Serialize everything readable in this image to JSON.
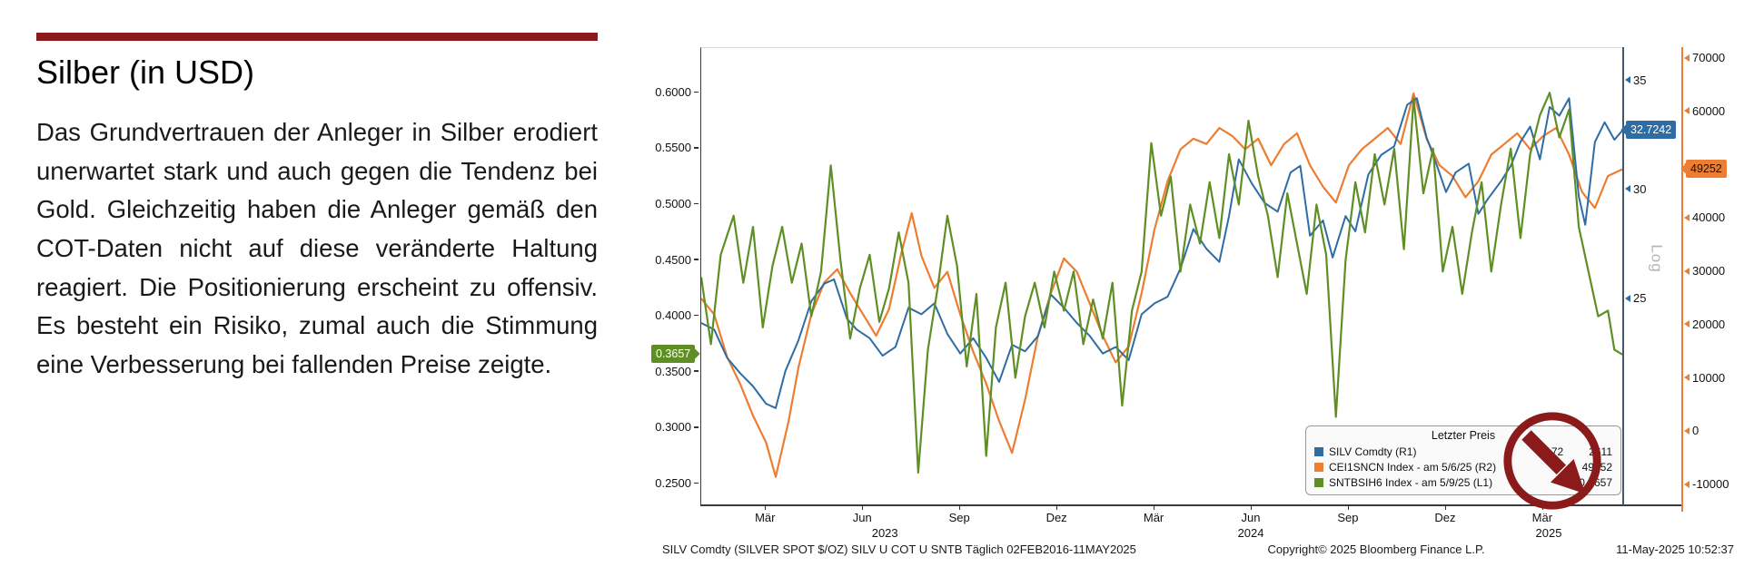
{
  "slide": {
    "title": "Silber (in USD)",
    "accent_color": "#8B1A1A",
    "body": "Das Grundvertrauen der Anleger in Silber erodiert unerwartet stark und auch gegen die Tendenz bei Gold. Gleichzeitig haben die Anleger gemäß den COT-Daten nicht auf diese veränderte Haltung reagiert. Die Positionierung erscheint zu offensiv. Es besteht ein Risiko, zumal auch die Stimmung eine Verbesserung bei fallenden Preise zeigte."
  },
  "chart": {
    "log_label": "Log",
    "annotation_color": "#8B1A1A",
    "legend": {
      "title": "Letzter Preis",
      "rows": [
        {
          "color": "#2E6DA4",
          "label": "SILV Comdty  (R1)",
          "value": "32.72",
          "value2": "2611"
        },
        {
          "color": "#ED7D31",
          "label": "CEI1SNCN Index -  am 5/6/25  (R2)",
          "value": "49252"
        },
        {
          "color": "#5F8F24",
          "label": "SNTBSIH6 Index -  am 5/9/25  (L1)",
          "value": "0.3657"
        }
      ]
    },
    "footer": {
      "left": "SILV Comdty (SILVER SPOT $/OZ) SILV U COT U SNTB  Täglich 02FEB2016-11MAY2025",
      "copyright": "Copyright© 2025 Bloomberg Finance L.P.",
      "datetime": "11-May-2025 10:52:37"
    }
  },
  "chart_data": {
    "type": "line",
    "title": "",
    "grid": false,
    "scale_note": "Log",
    "x_axis": {
      "max": 28.5,
      "start": "Feb 2023",
      "end": "May 2025",
      "ticks": [
        {
          "m": 2,
          "label": "Mär"
        },
        {
          "m": 5,
          "label": "Jun"
        },
        {
          "m": 8,
          "label": "Sep"
        },
        {
          "m": 11,
          "label": "Dez"
        },
        {
          "m": 14,
          "label": "Mär"
        },
        {
          "m": 17,
          "label": "Jun"
        },
        {
          "m": 20,
          "label": "Sep"
        },
        {
          "m": 23,
          "label": "Dez"
        },
        {
          "m": 26,
          "label": "Mär"
        }
      ],
      "years": [
        {
          "m": 5.7,
          "label": "2023"
        },
        {
          "m": 17,
          "label": "2024"
        },
        {
          "m": 26.2,
          "label": "2025"
        }
      ]
    },
    "axes": {
      "L1": {
        "min": 0.23,
        "max": 0.64,
        "color": "#5F8F24",
        "ticks": [
          {
            "v": 0.6,
            "label": "0.6000"
          },
          {
            "v": 0.55,
            "label": "0.5500"
          },
          {
            "v": 0.5,
            "label": "0.5000"
          },
          {
            "v": 0.45,
            "label": "0.4500"
          },
          {
            "v": 0.4,
            "label": "0.4000"
          },
          {
            "v": 0.35,
            "label": "0.3500"
          },
          {
            "v": 0.3,
            "label": "0.3000"
          },
          {
            "v": 0.25,
            "label": "0.2500"
          }
        ]
      },
      "R1": {
        "min": 15.5,
        "max": 36.5,
        "color": "#2E6DA4",
        "ticks": [
          {
            "v": 35,
            "label": "35"
          },
          {
            "v": 30,
            "label": "30"
          },
          {
            "v": 25,
            "label": "25"
          }
        ]
      },
      "R2": {
        "min": -14000,
        "max": 72000,
        "color": "#ED7D31",
        "ticks": [
          {
            "v": 70000,
            "label": "70000"
          },
          {
            "v": 60000,
            "label": "60000"
          },
          {
            "v": 50000,
            "label": "50000"
          },
          {
            "v": 40000,
            "label": "40000"
          },
          {
            "v": 30000,
            "label": "30000"
          },
          {
            "v": 20000,
            "label": "20000"
          },
          {
            "v": 10000,
            "label": "10000"
          },
          {
            "v": 0,
            "label": "0"
          },
          {
            "v": -10000,
            "label": "-10000"
          }
        ]
      }
    },
    "markers": {
      "L1": {
        "v": 0.3657,
        "label": "0.3657"
      },
      "R1": {
        "v": 32.7242,
        "label": "32.7242"
      },
      "R2": {
        "v": 49252,
        "label": "49252"
      }
    },
    "series": [
      {
        "name": "CEI1SNCN Index",
        "axis": "R2",
        "color": "#ED7D31",
        "width": 2.2,
        "points": [
          [
            0,
            25000
          ],
          [
            0.4,
            22000
          ],
          [
            0.8,
            14000
          ],
          [
            1.2,
            9000
          ],
          [
            1.6,
            3000
          ],
          [
            2.0,
            -2000
          ],
          [
            2.3,
            -8500
          ],
          [
            2.7,
            2000
          ],
          [
            3.0,
            12000
          ],
          [
            3.4,
            22000
          ],
          [
            3.8,
            28000
          ],
          [
            4.2,
            30500
          ],
          [
            4.6,
            26000
          ],
          [
            5.0,
            22000
          ],
          [
            5.4,
            18000
          ],
          [
            5.8,
            23000
          ],
          [
            6.2,
            34000
          ],
          [
            6.5,
            41000
          ],
          [
            6.8,
            33000
          ],
          [
            7.2,
            27000
          ],
          [
            7.6,
            30000
          ],
          [
            8.0,
            22000
          ],
          [
            8.4,
            15000
          ],
          [
            8.8,
            9000
          ],
          [
            9.2,
            2000
          ],
          [
            9.6,
            -4000
          ],
          [
            10.0,
            6000
          ],
          [
            10.4,
            18000
          ],
          [
            10.8,
            26000
          ],
          [
            11.2,
            32500
          ],
          [
            11.6,
            30000
          ],
          [
            12.0,
            24000
          ],
          [
            12.4,
            18000
          ],
          [
            12.8,
            13000
          ],
          [
            13.2,
            16000
          ],
          [
            13.6,
            26000
          ],
          [
            14.0,
            38000
          ],
          [
            14.4,
            47000
          ],
          [
            14.8,
            53000
          ],
          [
            15.2,
            55000
          ],
          [
            15.6,
            54000
          ],
          [
            16.0,
            57000
          ],
          [
            16.4,
            55500
          ],
          [
            16.8,
            53000
          ],
          [
            17.2,
            55000
          ],
          [
            17.6,
            50000
          ],
          [
            18.0,
            54000
          ],
          [
            18.4,
            56000
          ],
          [
            18.8,
            50000
          ],
          [
            19.2,
            46000
          ],
          [
            19.6,
            43000
          ],
          [
            20.0,
            50000
          ],
          [
            20.4,
            53000
          ],
          [
            20.8,
            55000
          ],
          [
            21.2,
            57000
          ],
          [
            21.6,
            54000
          ],
          [
            22.0,
            63500
          ],
          [
            22.4,
            55000
          ],
          [
            22.8,
            50000
          ],
          [
            23.2,
            48000
          ],
          [
            23.6,
            44000
          ],
          [
            24.0,
            47000
          ],
          [
            24.4,
            52000
          ],
          [
            24.8,
            54000
          ],
          [
            25.2,
            56000
          ],
          [
            25.6,
            53000
          ],
          [
            26.0,
            55500
          ],
          [
            26.4,
            57000
          ],
          [
            26.8,
            52000
          ],
          [
            27.2,
            45000
          ],
          [
            27.6,
            42000
          ],
          [
            28.0,
            48000
          ],
          [
            28.45,
            49252
          ]
        ]
      },
      {
        "name": "SILV Comdty",
        "axis": "R1",
        "color": "#2E6DA4",
        "width": 2,
        "points": [
          [
            0,
            23.9
          ],
          [
            0.4,
            23.6
          ],
          [
            0.8,
            22.3
          ],
          [
            1.2,
            21.6
          ],
          [
            1.6,
            21.0
          ],
          [
            2.0,
            20.2
          ],
          [
            2.3,
            20.0
          ],
          [
            2.6,
            21.7
          ],
          [
            3.0,
            23.1
          ],
          [
            3.4,
            24.9
          ],
          [
            3.8,
            25.7
          ],
          [
            4.1,
            25.9
          ],
          [
            4.5,
            24.1
          ],
          [
            4.8,
            23.6
          ],
          [
            5.2,
            23.2
          ],
          [
            5.6,
            22.4
          ],
          [
            6.0,
            22.8
          ],
          [
            6.4,
            24.6
          ],
          [
            6.8,
            24.3
          ],
          [
            7.2,
            24.8
          ],
          [
            7.6,
            23.4
          ],
          [
            8.0,
            22.5
          ],
          [
            8.4,
            23.2
          ],
          [
            8.8,
            22.3
          ],
          [
            9.2,
            21.2
          ],
          [
            9.6,
            22.9
          ],
          [
            10.0,
            22.6
          ],
          [
            10.4,
            23.3
          ],
          [
            10.8,
            25.2
          ],
          [
            11.2,
            24.6
          ],
          [
            11.6,
            23.9
          ],
          [
            12.0,
            23.3
          ],
          [
            12.4,
            22.5
          ],
          [
            12.8,
            22.8
          ],
          [
            13.2,
            22.2
          ],
          [
            13.6,
            24.3
          ],
          [
            14.0,
            24.8
          ],
          [
            14.4,
            25.1
          ],
          [
            14.8,
            26.4
          ],
          [
            15.2,
            28.2
          ],
          [
            15.6,
            27.3
          ],
          [
            16.0,
            26.7
          ],
          [
            16.3,
            28.8
          ],
          [
            16.6,
            31.4
          ],
          [
            17.0,
            30.3
          ],
          [
            17.4,
            29.4
          ],
          [
            17.8,
            29.0
          ],
          [
            18.2,
            30.8
          ],
          [
            18.5,
            31.1
          ],
          [
            18.8,
            27.9
          ],
          [
            19.2,
            28.6
          ],
          [
            19.5,
            26.9
          ],
          [
            19.9,
            28.8
          ],
          [
            20.2,
            28.1
          ],
          [
            20.6,
            30.7
          ],
          [
            21.0,
            31.6
          ],
          [
            21.4,
            32.0
          ],
          [
            21.8,
            33.9
          ],
          [
            22.1,
            34.2
          ],
          [
            22.4,
            32.4
          ],
          [
            22.7,
            31.2
          ],
          [
            23.0,
            29.9
          ],
          [
            23.3,
            30.8
          ],
          [
            23.7,
            31.2
          ],
          [
            24.0,
            28.9
          ],
          [
            24.3,
            29.6
          ],
          [
            24.7,
            30.4
          ],
          [
            25.0,
            31.1
          ],
          [
            25.3,
            32.2
          ],
          [
            25.6,
            32.9
          ],
          [
            25.9,
            31.4
          ],
          [
            26.2,
            33.8
          ],
          [
            26.5,
            33.4
          ],
          [
            26.8,
            34.2
          ],
          [
            27.1,
            29.7
          ],
          [
            27.3,
            28.4
          ],
          [
            27.6,
            32.2
          ],
          [
            27.9,
            33.1
          ],
          [
            28.2,
            32.3
          ],
          [
            28.45,
            32.7242
          ]
        ]
      },
      {
        "name": "SNTBSIH6 Index",
        "axis": "L1",
        "color": "#5F8F24",
        "width": 2.2,
        "points": [
          [
            0,
            0.435
          ],
          [
            0.3,
            0.375
          ],
          [
            0.6,
            0.455
          ],
          [
            1.0,
            0.49
          ],
          [
            1.3,
            0.43
          ],
          [
            1.6,
            0.48
          ],
          [
            1.9,
            0.39
          ],
          [
            2.2,
            0.445
          ],
          [
            2.5,
            0.48
          ],
          [
            2.8,
            0.43
          ],
          [
            3.1,
            0.465
          ],
          [
            3.4,
            0.4
          ],
          [
            3.7,
            0.44
          ],
          [
            4.0,
            0.535
          ],
          [
            4.3,
            0.45
          ],
          [
            4.6,
            0.38
          ],
          [
            4.9,
            0.425
          ],
          [
            5.2,
            0.455
          ],
          [
            5.5,
            0.395
          ],
          [
            5.8,
            0.425
          ],
          [
            6.1,
            0.475
          ],
          [
            6.4,
            0.43
          ],
          [
            6.7,
            0.26
          ],
          [
            7.0,
            0.37
          ],
          [
            7.3,
            0.425
          ],
          [
            7.6,
            0.49
          ],
          [
            7.9,
            0.445
          ],
          [
            8.2,
            0.355
          ],
          [
            8.5,
            0.42
          ],
          [
            8.8,
            0.275
          ],
          [
            9.1,
            0.39
          ],
          [
            9.4,
            0.43
          ],
          [
            9.7,
            0.345
          ],
          [
            10.0,
            0.4
          ],
          [
            10.3,
            0.43
          ],
          [
            10.6,
            0.39
          ],
          [
            10.9,
            0.44
          ],
          [
            11.2,
            0.405
          ],
          [
            11.5,
            0.44
          ],
          [
            11.8,
            0.375
          ],
          [
            12.1,
            0.415
          ],
          [
            12.4,
            0.38
          ],
          [
            12.7,
            0.43
          ],
          [
            13.0,
            0.32
          ],
          [
            13.3,
            0.405
          ],
          [
            13.6,
            0.44
          ],
          [
            13.9,
            0.555
          ],
          [
            14.2,
            0.49
          ],
          [
            14.5,
            0.525
          ],
          [
            14.8,
            0.44
          ],
          [
            15.1,
            0.5
          ],
          [
            15.4,
            0.465
          ],
          [
            15.7,
            0.52
          ],
          [
            16.0,
            0.47
          ],
          [
            16.3,
            0.545
          ],
          [
            16.6,
            0.5
          ],
          [
            16.9,
            0.575
          ],
          [
            17.2,
            0.525
          ],
          [
            17.5,
            0.49
          ],
          [
            17.8,
            0.435
          ],
          [
            18.1,
            0.51
          ],
          [
            18.4,
            0.465
          ],
          [
            18.7,
            0.42
          ],
          [
            19.0,
            0.5
          ],
          [
            19.3,
            0.455
          ],
          [
            19.6,
            0.31
          ],
          [
            19.9,
            0.45
          ],
          [
            20.2,
            0.52
          ],
          [
            20.5,
            0.475
          ],
          [
            20.8,
            0.545
          ],
          [
            21.1,
            0.5
          ],
          [
            21.4,
            0.55
          ],
          [
            21.7,
            0.46
          ],
          [
            22.0,
            0.595
          ],
          [
            22.3,
            0.51
          ],
          [
            22.6,
            0.55
          ],
          [
            22.9,
            0.44
          ],
          [
            23.2,
            0.48
          ],
          [
            23.5,
            0.42
          ],
          [
            23.8,
            0.475
          ],
          [
            24.1,
            0.52
          ],
          [
            24.4,
            0.44
          ],
          [
            24.7,
            0.5
          ],
          [
            25.0,
            0.55
          ],
          [
            25.3,
            0.47
          ],
          [
            25.6,
            0.545
          ],
          [
            25.9,
            0.58
          ],
          [
            26.2,
            0.6
          ],
          [
            26.5,
            0.56
          ],
          [
            26.8,
            0.585
          ],
          [
            27.1,
            0.48
          ],
          [
            27.4,
            0.44
          ],
          [
            27.7,
            0.4
          ],
          [
            28.0,
            0.405
          ],
          [
            28.2,
            0.37
          ],
          [
            28.45,
            0.3657
          ]
        ]
      }
    ]
  }
}
